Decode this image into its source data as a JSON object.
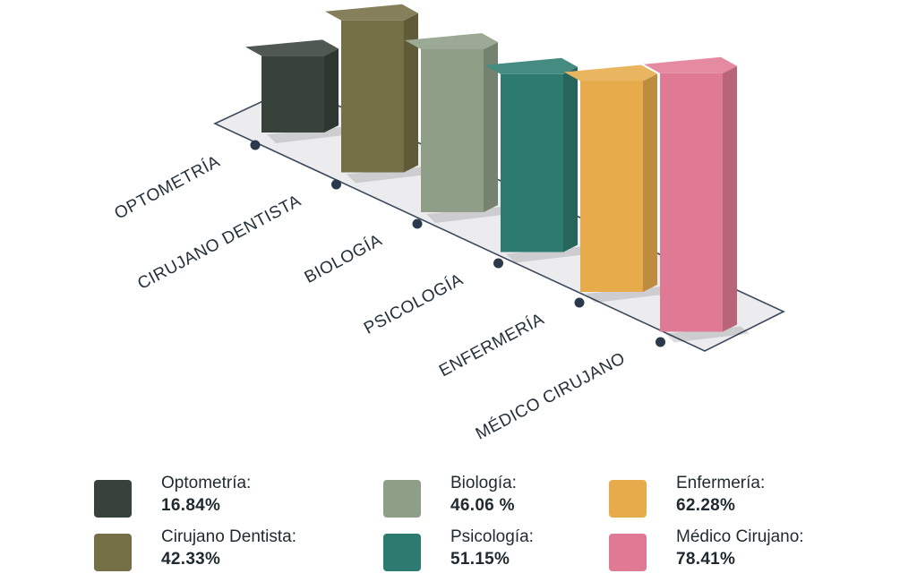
{
  "chart_data": {
    "type": "bar",
    "categories": [
      "OPTOMETRÍA",
      "CIRUJANO DENTISTA",
      "BIOLOGÍA",
      "PSICOLOGÍA",
      "ENFERMERÍA",
      "MÉDICO CIRUJANO"
    ],
    "values": [
      16.84,
      42.33,
      46.06,
      51.15,
      62.28,
      78.41
    ],
    "colors": [
      "#37423a",
      "#746f45",
      "#8f9e87",
      "#2d7b70",
      "#e7ab4b",
      "#e07a94"
    ],
    "title": "",
    "xlabel": "",
    "ylabel": "",
    "ylim": [
      0,
      100
    ],
    "grid": false,
    "legend_placement": "bottom"
  },
  "legend": {
    "items": [
      {
        "name": "Optometría:",
        "value": "16.84%",
        "color": "#37423a"
      },
      {
        "name": "Cirujano Dentista:",
        "value": "42.33%",
        "color": "#746f45"
      },
      {
        "name": "Biología:",
        "value": "46.06 %",
        "color": "#8f9e87"
      },
      {
        "name": "Psicología:",
        "value": "51.15%",
        "color": "#2d7b70"
      },
      {
        "name": "Enfermería:",
        "value": "62.28%",
        "color": "#e7ab4b"
      },
      {
        "name": "Médico Cirujano:",
        "value": "78.41%",
        "color": "#e07a94"
      }
    ]
  }
}
